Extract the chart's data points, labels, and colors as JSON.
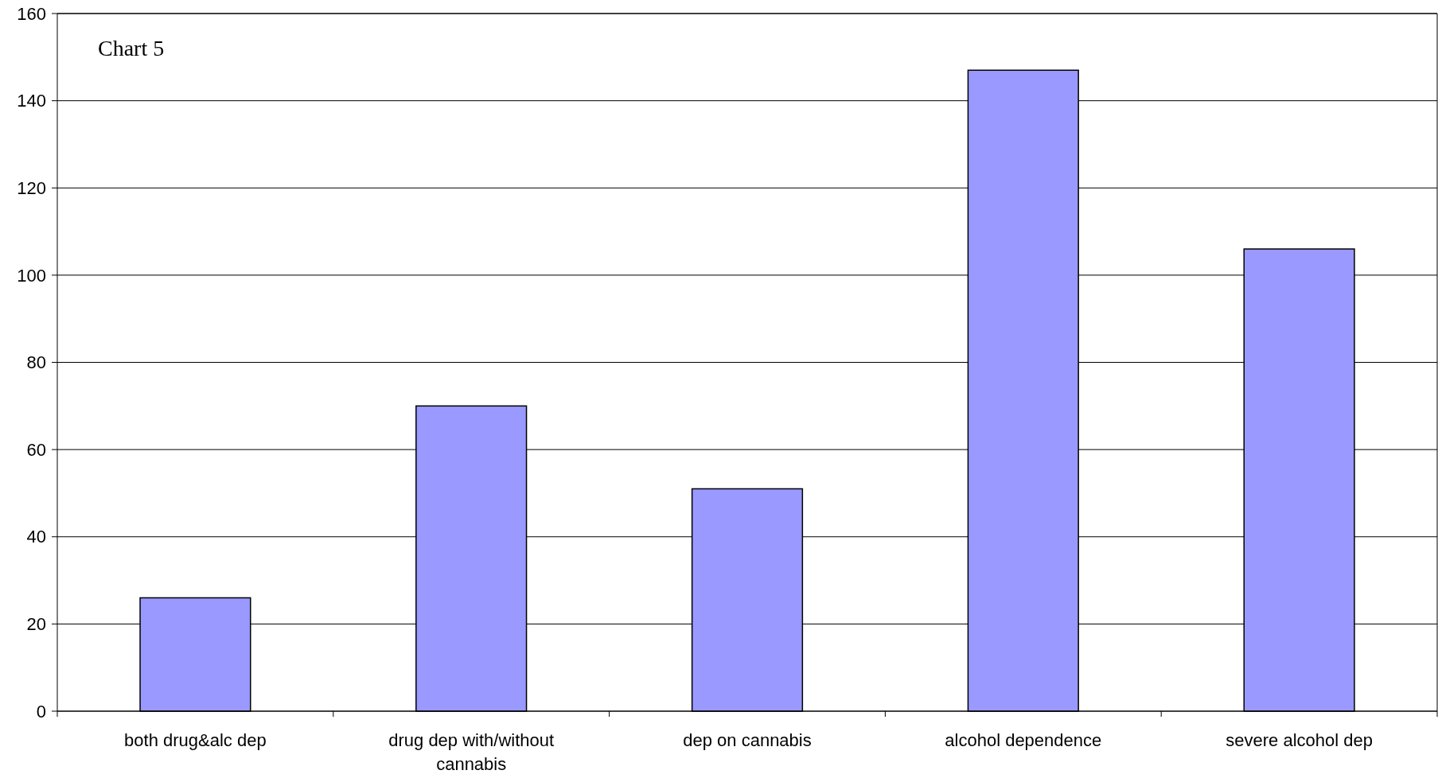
{
  "chart_data": {
    "type": "bar",
    "title": "Chart 5",
    "categories": [
      "both drug&alc dep",
      "drug dep with/without cannabis",
      "dep on cannabis",
      "alcohol dependence",
      "severe alcohol dep"
    ],
    "values": [
      26,
      70,
      51,
      147,
      106
    ],
    "color": "#9999ff",
    "ylim": [
      0,
      160
    ],
    "yticks": [
      0,
      20,
      40,
      60,
      80,
      100,
      120,
      140,
      160
    ],
    "grid": "y"
  }
}
